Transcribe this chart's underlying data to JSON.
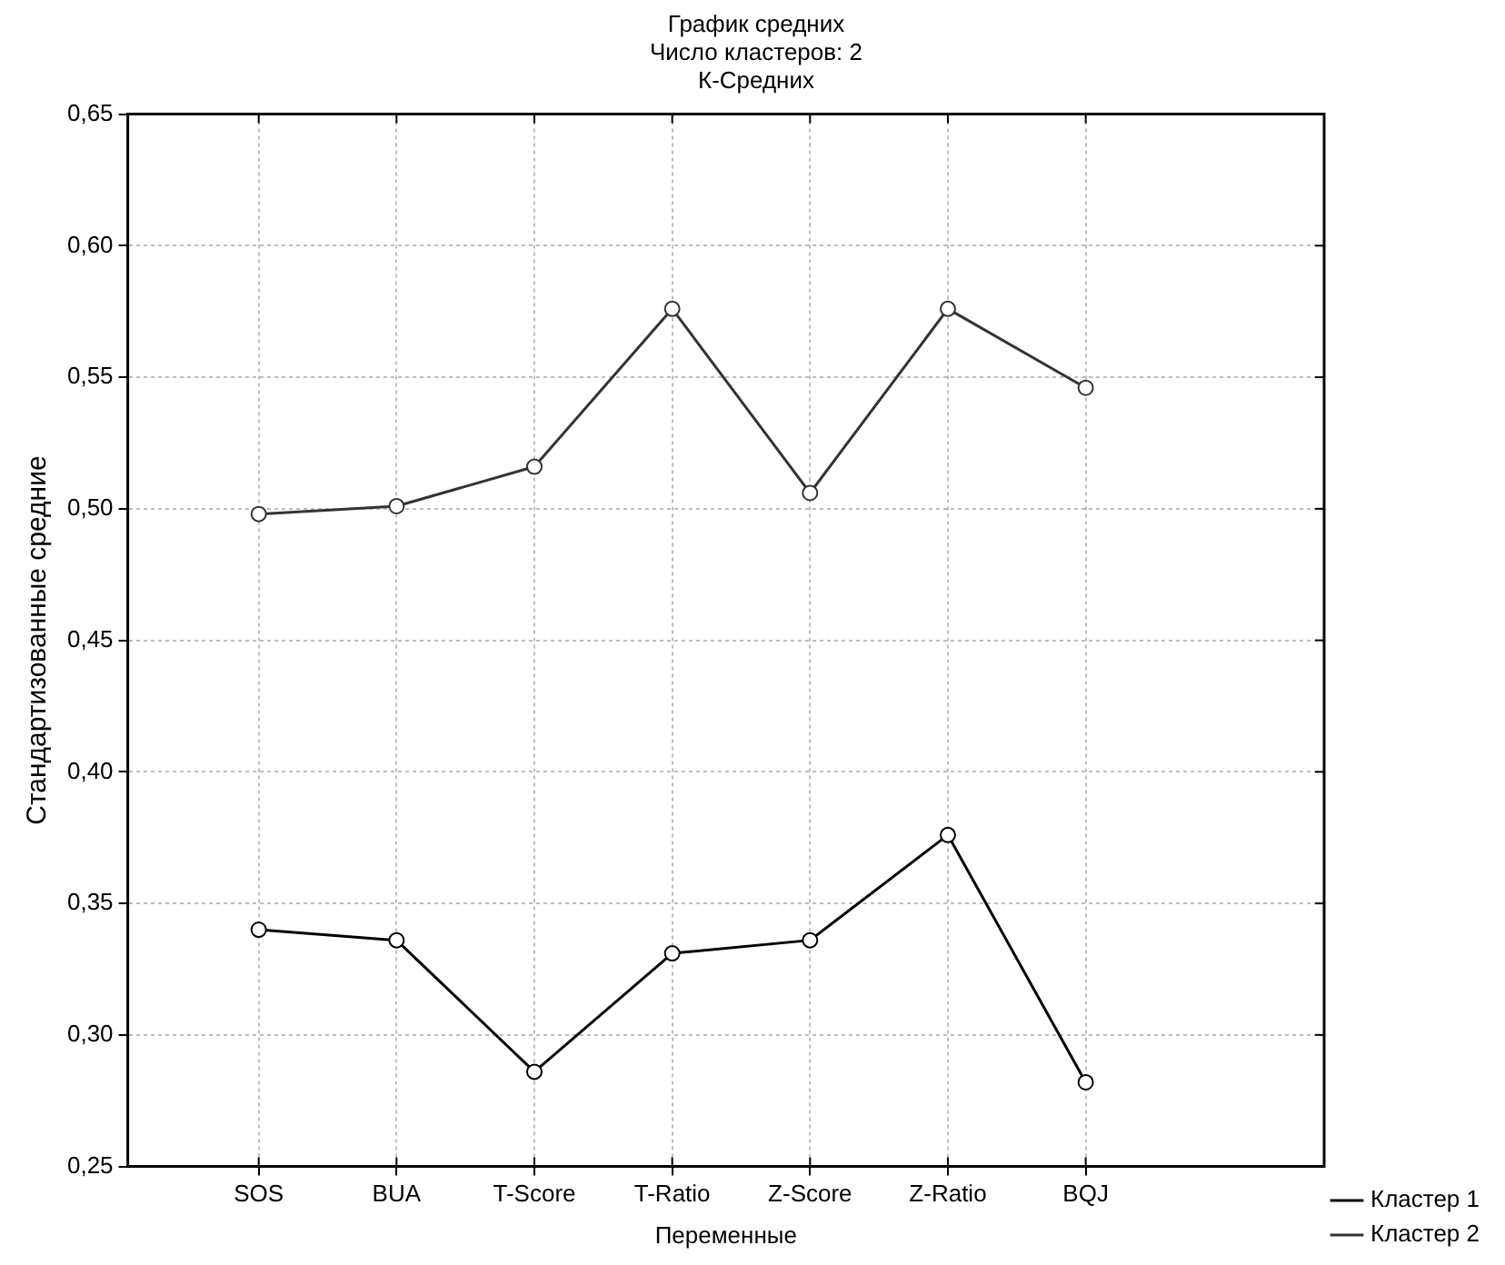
{
  "chart_data": {
    "type": "line",
    "title": "График средних\nЧисло кластеров: 2\nК-Средних",
    "xlabel": "Переменные",
    "ylabel": "Стандартизованные средние",
    "categories": [
      "SOS",
      "BUA",
      "T-Score",
      "T-Ratio",
      "Z-Score",
      "Z-Ratio",
      "BQJ"
    ],
    "series": [
      {
        "name": "Кластер 1",
        "color": "#000000",
        "values": [
          0.34,
          0.336,
          0.286,
          0.331,
          0.336,
          0.376,
          0.282
        ]
      },
      {
        "name": "Кластер 2",
        "color": "#333333",
        "values": [
          0.498,
          0.501,
          0.516,
          0.576,
          0.506,
          0.576,
          0.546
        ]
      }
    ],
    "ylim": [
      0.25,
      0.65
    ],
    "yticks": [
      {
        "value": 0.25,
        "label": "0,25"
      },
      {
        "value": 0.3,
        "label": "0,30"
      },
      {
        "value": 0.35,
        "label": "0,35"
      },
      {
        "value": 0.4,
        "label": "0,40"
      },
      {
        "value": 0.45,
        "label": "0,45"
      },
      {
        "value": 0.5,
        "label": "0,50"
      },
      {
        "value": 0.55,
        "label": "0,55"
      },
      {
        "value": 0.6,
        "label": "0,60"
      },
      {
        "value": 0.65,
        "label": "0,65"
      }
    ],
    "grid": true,
    "legend": "bottom right",
    "marker": "circle",
    "line_style": "solid"
  }
}
